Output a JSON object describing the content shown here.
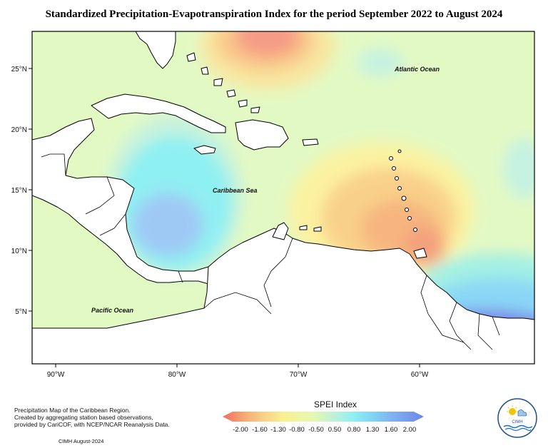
{
  "title": "Standardized Precipitation-Evapotranspiration Index for the period September 2022 to August 2024",
  "map_labels": {
    "atlantic": "Atlantic Ocean",
    "caribbean": "Caribbean Sea",
    "pacific": "Pacific Ocean"
  },
  "lat_ticks": [
    "25°N",
    "20°N",
    "15°N",
    "10°N",
    "5°N"
  ],
  "lon_ticks": [
    "90°W",
    "80°W",
    "70°W",
    "60°W"
  ],
  "legend": {
    "title": "SPEI Index",
    "values": [
      "-2.00",
      "-1.60",
      "-1.30",
      "-0.80",
      "-0.50",
      "0.50",
      "0.80",
      "1.30",
      "1.60",
      "2.00"
    ],
    "colors": [
      "#f26b5e",
      "#f5a673",
      "#f8cf87",
      "#fbf08f",
      "#e6f8b0",
      "#bff2d5",
      "#8ef0f0",
      "#7fd3f5",
      "#7fb0f0",
      "#6b88e8",
      "#7b79e8"
    ]
  },
  "notes": {
    "line1": "Precipitation Map of the Caribbean Region.",
    "line2": "Created by aggregating station based observations,",
    "line3": "provided by CariCOF, with NCEP/NCAR Reanalysis Data.",
    "credit": "CIMH August-2024"
  },
  "logo_text": "CIMH"
}
